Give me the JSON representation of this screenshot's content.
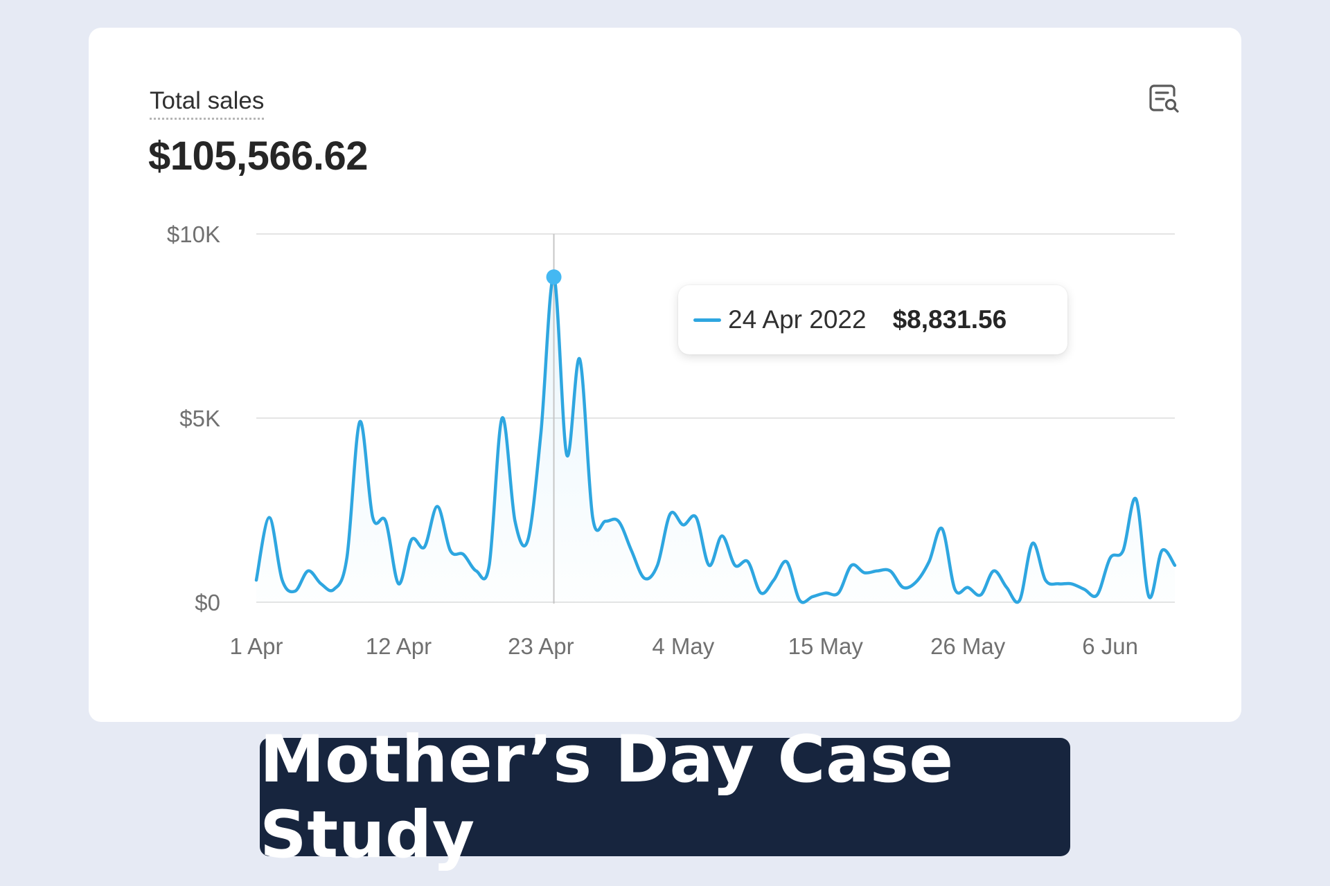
{
  "card": {
    "metric_label": "Total sales",
    "metric_value": "$105,566.62",
    "report_icon": "report-search-icon"
  },
  "tooltip": {
    "date": "24 Apr 2022",
    "value": "$8,831.56"
  },
  "banner": {
    "text": "Mother’s Day Case Study"
  },
  "colors": {
    "line": "#2ea6e0",
    "highlight_point": "#44b8f2",
    "gridline": "#e4e4e4",
    "banner_bg": "#17253e",
    "page_bg": "#e6eaf4"
  },
  "chart_data": {
    "type": "line",
    "title": "",
    "xlabel": "",
    "ylabel": "",
    "ylim": [
      0,
      10000
    ],
    "y_ticks": [
      0,
      5000,
      10000
    ],
    "y_tick_labels": [
      "$0",
      "$5K",
      "$10K"
    ],
    "x_tick_labels": [
      "1 Apr",
      "12 Apr",
      "23 Apr",
      "4 May",
      "15 May",
      "26 May",
      "6 Jun"
    ],
    "x_tick_dates": [
      "2022-04-01",
      "2022-04-12",
      "2022-04-23",
      "2022-05-04",
      "2022-05-15",
      "2022-05-26",
      "2022-06-06"
    ],
    "grid": true,
    "area_fill": true,
    "highlight": {
      "x": "2022-04-24",
      "y": 8831.56
    },
    "series": [
      {
        "x": [
          "2022-04-01",
          "2022-04-02",
          "2022-04-03",
          "2022-04-04",
          "2022-04-05",
          "2022-04-06",
          "2022-04-07",
          "2022-04-08",
          "2022-04-09",
          "2022-04-10",
          "2022-04-11",
          "2022-04-12",
          "2022-04-13",
          "2022-04-14",
          "2022-04-15",
          "2022-04-16",
          "2022-04-17",
          "2022-04-18",
          "2022-04-19",
          "2022-04-20",
          "2022-04-21",
          "2022-04-22",
          "2022-04-23",
          "2022-04-24",
          "2022-04-25",
          "2022-04-26",
          "2022-04-27",
          "2022-04-28",
          "2022-04-29",
          "2022-04-30",
          "2022-05-01",
          "2022-05-02",
          "2022-05-03",
          "2022-05-04",
          "2022-05-05",
          "2022-05-06",
          "2022-05-07",
          "2022-05-08",
          "2022-05-09",
          "2022-05-10",
          "2022-05-11",
          "2022-05-12",
          "2022-05-13",
          "2022-05-14",
          "2022-05-15",
          "2022-05-16",
          "2022-05-17",
          "2022-05-18",
          "2022-05-19",
          "2022-05-20",
          "2022-05-21",
          "2022-05-22",
          "2022-05-23",
          "2022-05-24",
          "2022-05-25",
          "2022-05-26",
          "2022-05-27",
          "2022-05-28",
          "2022-05-29",
          "2022-05-30",
          "2022-05-31",
          "2022-06-01",
          "2022-06-02",
          "2022-06-03",
          "2022-06-04",
          "2022-06-05",
          "2022-06-06",
          "2022-06-07",
          "2022-06-08",
          "2022-06-09",
          "2022-06-10",
          "2022-06-11"
        ],
        "values": [
          600,
          2300,
          600,
          300,
          850,
          500,
          350,
          1200,
          4900,
          2300,
          2200,
          500,
          1700,
          1500,
          2600,
          1400,
          1300,
          850,
          1000,
          5000,
          2200,
          1700,
          4600,
          8831.56,
          4000,
          6600,
          2300,
          2200,
          2200,
          1400,
          650,
          1000,
          2400,
          2100,
          2300,
          1000,
          1800,
          1000,
          1100,
          250,
          600,
          1100,
          50,
          150,
          250,
          250,
          1000,
          800,
          850,
          850,
          400,
          550,
          1100,
          2000,
          350,
          400,
          200,
          850,
          400,
          50,
          1600,
          600,
          500,
          500,
          350,
          200,
          1200,
          1400,
          2800,
          150,
          1400,
          1000
        ]
      }
    ]
  }
}
